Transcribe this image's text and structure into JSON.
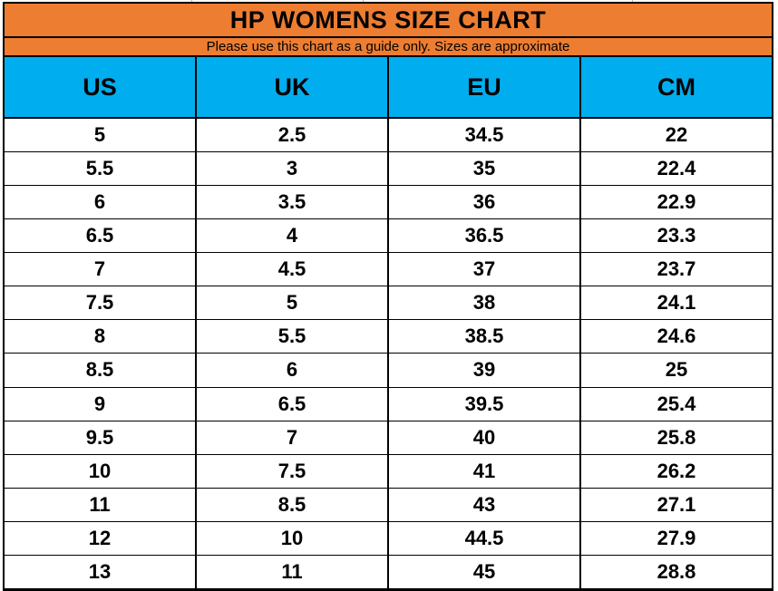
{
  "colors": {
    "header_orange": "#ED7D31",
    "header_blue": "#00AEEF",
    "border_black": "#000000",
    "row_white": "#FFFFFF",
    "text_black": "#000000"
  },
  "chart_data": {
    "type": "table",
    "title": "HP WOMENS SIZE CHART",
    "subtitle": "Please use this chart as a guide only. Sizes are approximate",
    "columns": [
      "US",
      "UK",
      "EU",
      "CM"
    ],
    "rows": [
      [
        "5",
        "2.5",
        "34.5",
        "22"
      ],
      [
        "5.5",
        "3",
        "35",
        "22.4"
      ],
      [
        "6",
        "3.5",
        "36",
        "22.9"
      ],
      [
        "6.5",
        "4",
        "36.5",
        "23.3"
      ],
      [
        "7",
        "4.5",
        "37",
        "23.7"
      ],
      [
        "7.5",
        "5",
        "38",
        "24.1"
      ],
      [
        "8",
        "5.5",
        "38.5",
        "24.6"
      ],
      [
        "8.5",
        "6",
        "39",
        "25"
      ],
      [
        "9",
        "6.5",
        "39.5",
        "25.4"
      ],
      [
        "9.5",
        "7",
        "40",
        "25.8"
      ],
      [
        "10",
        "7.5",
        "41",
        "26.2"
      ],
      [
        "11",
        "8.5",
        "43",
        "27.1"
      ],
      [
        "12",
        "10",
        "44.5",
        "27.9"
      ],
      [
        "13",
        "11",
        "45",
        "28.8"
      ]
    ]
  }
}
